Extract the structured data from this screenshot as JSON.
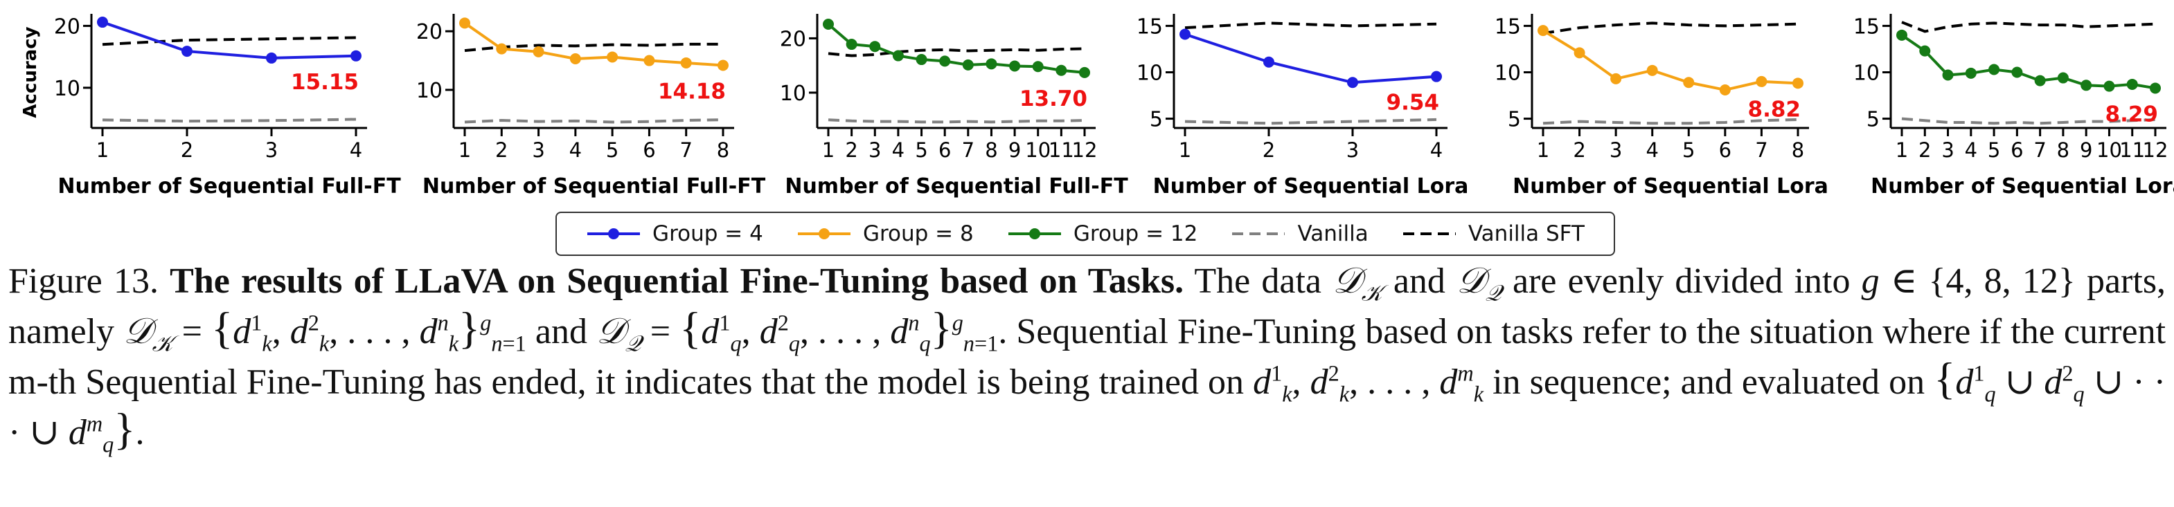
{
  "figure": {
    "number_label": "Figure 13.",
    "bold_title": "The results of LLaVA on Sequential Fine-Tuning based on Tasks.",
    "caption_parts": {
      "p1": "The data",
      "p2": "and",
      "p3": "are evenly divided into",
      "p4": "parts, namely",
      "p5": "and",
      "p6": "Sequential Fine-Tuning based on tasks refer to the situation where if the current m-th Sequential Fine-Tuning has ended, it indicates that the model is being trained on",
      "p7": "in sequence; and evaluated on"
    }
  },
  "legend": {
    "items": [
      {
        "label": "Group = 4",
        "color": "#1f1fe0",
        "style": "solid-marker"
      },
      {
        "label": "Group = 8",
        "color": "#f5a214",
        "style": "solid-marker"
      },
      {
        "label": "Group = 12",
        "color": "#157a15",
        "style": "solid-marker"
      },
      {
        "label": "Vanilla",
        "color": "#808080",
        "style": "dashed"
      },
      {
        "label": "Vanilla SFT",
        "color": "#000000",
        "style": "dashed"
      }
    ]
  },
  "chart_data": [
    {
      "type": "line",
      "xlabel": "Number of Sequential Full-FT",
      "ylabel": "Accuracy",
      "ylim": [
        3.5,
        21.5
      ],
      "yticks": [
        10,
        20
      ],
      "x": [
        1,
        2,
        3,
        4
      ],
      "color": "#1f1fe0",
      "series": [
        {
          "name": "Group = 4",
          "values": [
            20.6,
            15.9,
            14.8,
            15.15
          ]
        }
      ],
      "vanilla": [
        4.8,
        4.6,
        4.7,
        4.9
      ],
      "vanilla_sft": [
        17.0,
        17.7,
        17.9,
        18.1
      ],
      "final_label": "15.15"
    },
    {
      "type": "line",
      "xlabel": "Number of Sequential Full-FT",
      "ylabel": "",
      "ylim": [
        3.5,
        22.5
      ],
      "yticks": [
        10,
        20
      ],
      "x": [
        1,
        2,
        3,
        4,
        5,
        6,
        7,
        8
      ],
      "color": "#f5a214",
      "series": [
        {
          "name": "Group = 8",
          "values": [
            21.4,
            17.0,
            16.5,
            15.3,
            15.6,
            15.0,
            14.6,
            14.18
          ]
        }
      ],
      "vanilla": [
        4.5,
        4.8,
        4.6,
        4.7,
        4.5,
        4.6,
        4.8,
        4.9
      ],
      "vanilla_sft": [
        16.7,
        17.3,
        17.6,
        17.5,
        17.7,
        17.6,
        17.8,
        17.8
      ],
      "final_label": "14.18"
    },
    {
      "type": "line",
      "xlabel": "Number of Sequential Full-FT",
      "ylabel": "",
      "ylim": [
        3.5,
        24
      ],
      "yticks": [
        10,
        20
      ],
      "x": [
        1,
        2,
        3,
        4,
        5,
        6,
        7,
        8,
        9,
        10,
        11,
        12
      ],
      "color": "#157a15",
      "series": [
        {
          "name": "Group = 12",
          "values": [
            22.6,
            18.9,
            18.5,
            16.8,
            16.1,
            15.8,
            15.1,
            15.3,
            14.9,
            14.8,
            14.1,
            13.7
          ]
        }
      ],
      "vanilla": [
        5.0,
        4.8,
        4.7,
        4.7,
        4.6,
        4.6,
        4.7,
        4.6,
        4.7,
        4.8,
        4.8,
        4.9
      ],
      "vanilla_sft": [
        17.2,
        16.8,
        17.0,
        17.5,
        17.8,
        17.9,
        17.7,
        17.8,
        17.9,
        17.8,
        18.0,
        18.1
      ],
      "final_label": "13.70"
    },
    {
      "type": "line",
      "xlabel": "Number of Sequential Lora",
      "ylabel": "",
      "ylim": [
        4,
        16
      ],
      "yticks": [
        5,
        10,
        15
      ],
      "x": [
        1,
        2,
        3,
        4
      ],
      "color": "#1f1fe0",
      "series": [
        {
          "name": "Group = 4",
          "values": [
            14.1,
            11.1,
            8.9,
            9.54
          ]
        }
      ],
      "vanilla": [
        4.7,
        4.5,
        4.7,
        4.9
      ],
      "vanilla_sft": [
        14.8,
        15.3,
        15.0,
        15.2
      ],
      "final_label": "9.54"
    },
    {
      "type": "line",
      "xlabel": "Number of Sequential Lora",
      "ylabel": "",
      "ylim": [
        4,
        16
      ],
      "yticks": [
        5,
        10,
        15
      ],
      "x": [
        1,
        2,
        3,
        4,
        5,
        6,
        7,
        8
      ],
      "color": "#f5a214",
      "series": [
        {
          "name": "Group = 8",
          "values": [
            14.5,
            12.1,
            9.3,
            10.2,
            8.9,
            8.1,
            9.0,
            8.82
          ]
        }
      ],
      "vanilla": [
        4.5,
        4.7,
        4.6,
        4.5,
        4.5,
        4.6,
        4.8,
        4.9
      ],
      "vanilla_sft": [
        14.2,
        14.8,
        15.1,
        15.3,
        15.1,
        15.0,
        15.1,
        15.2
      ],
      "final_label": "8.82"
    },
    {
      "type": "line",
      "xlabel": "Number of Sequential Lora",
      "ylabel": "",
      "ylim": [
        4,
        16
      ],
      "yticks": [
        5,
        10,
        15
      ],
      "x": [
        1,
        2,
        3,
        4,
        5,
        6,
        7,
        8,
        9,
        10,
        11,
        12
      ],
      "color": "#157a15",
      "series": [
        {
          "name": "Group = 12",
          "values": [
            14.0,
            12.3,
            9.7,
            9.9,
            10.3,
            10.0,
            9.1,
            9.4,
            8.6,
            8.5,
            8.7,
            8.29
          ]
        }
      ],
      "vanilla": [
        5.0,
        4.8,
        4.6,
        4.6,
        4.5,
        4.6,
        4.5,
        4.6,
        4.7,
        4.7,
        4.8,
        4.9
      ],
      "vanilla_sft": [
        15.4,
        14.4,
        14.9,
        15.2,
        15.3,
        15.2,
        15.1,
        15.1,
        14.9,
        15.0,
        15.1,
        15.2
      ],
      "final_label": "8.29"
    }
  ]
}
